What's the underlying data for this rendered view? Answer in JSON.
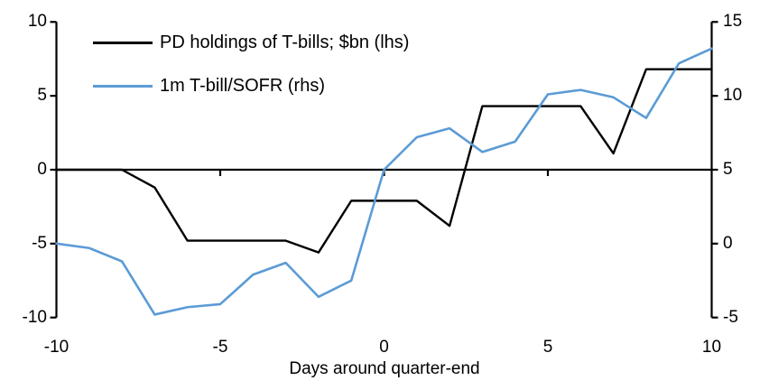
{
  "chart_data": {
    "type": "line",
    "background": "#FFFFFF",
    "grid": "none",
    "legend_position": "top-left-inside",
    "x": [
      -10,
      -9,
      -8,
      -7,
      -6,
      -5,
      -4,
      -3,
      -2,
      -1,
      0,
      1,
      2,
      3,
      4,
      5,
      6,
      7,
      8,
      9,
      10
    ],
    "x_axis": {
      "label": "Days around quarter-end",
      "ticks": [
        -10,
        -5,
        0,
        5,
        10
      ],
      "inner_tick_marks": [
        -5,
        0,
        5
      ],
      "range": [
        -10,
        10
      ]
    },
    "left_axis": {
      "ticks": [
        10,
        5,
        0,
        -5,
        -10
      ],
      "range": [
        -10,
        10
      ]
    },
    "right_axis": {
      "ticks": [
        15,
        10,
        5,
        0,
        -5
      ],
      "range": [
        -5,
        15
      ]
    },
    "series": [
      {
        "name": "PD holdings of T-bills; $bn (lhs)",
        "axis": "left",
        "color": "#000000",
        "values": [
          0,
          0,
          0,
          -1.2,
          -4.8,
          -4.8,
          -4.8,
          -4.8,
          -5.6,
          -2.1,
          -2.1,
          -2.1,
          -3.8,
          4.3,
          4.3,
          4.3,
          4.3,
          1.1,
          6.8,
          6.8,
          6.8
        ]
      },
      {
        "name": "1m T-bill/SOFR (rhs)",
        "axis": "right",
        "color": "#5B9BD5",
        "values": [
          0,
          -0.3,
          -1.2,
          -4.8,
          -4.3,
          -4.1,
          -2.1,
          -1.3,
          -3.6,
          -2.5,
          5.0,
          7.2,
          7.8,
          6.2,
          6.9,
          10.1,
          10.4,
          9.9,
          8.5,
          12.2,
          13.2
        ]
      }
    ]
  }
}
